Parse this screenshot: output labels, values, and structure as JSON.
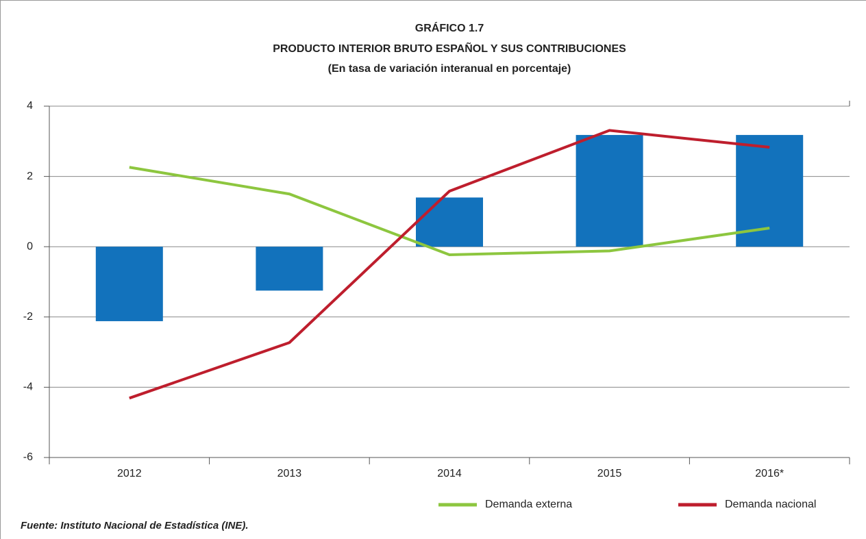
{
  "chart_data": {
    "type": "bar",
    "title": "GRÁFICO 1.7",
    "subtitle": "PRODUCTO INTERIOR BRUTO ESPAÑOL Y SUS CONTRIBUCIONES",
    "caption": "(En tasa de variación interanual en porcentaje)",
    "source": "Fuente: Instituto Nacional de Estadística (INE).",
    "categories": [
      "2012",
      "2013",
      "2014",
      "2015",
      "2016*"
    ],
    "series": [
      {
        "type": "bar",
        "color": "#1272bc",
        "values": [
          -2.12,
          -1.25,
          1.4,
          3.18,
          3.18
        ]
      },
      {
        "type": "line",
        "name": "Demanda externa",
        "color": "#8dc63f",
        "values": [
          2.26,
          1.5,
          -0.23,
          -0.12,
          0.53
        ]
      },
      {
        "type": "line",
        "name": "Demanda nacional",
        "color": "#be1e2d",
        "values": [
          -4.31,
          -2.73,
          1.58,
          3.31,
          2.83
        ]
      }
    ],
    "ylim": [
      -6,
      4
    ],
    "yticks": [
      -6,
      -4,
      -2,
      0,
      2,
      4
    ],
    "grid": true,
    "legend": "bottom-right"
  }
}
